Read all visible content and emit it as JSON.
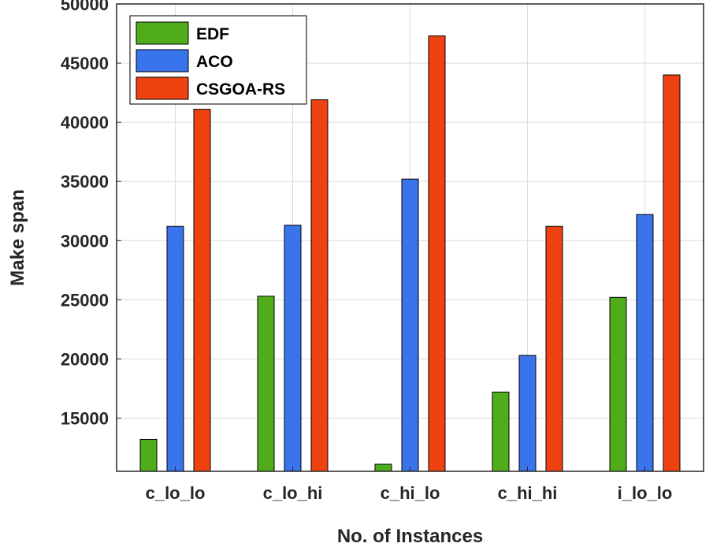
{
  "chart_data": {
    "type": "bar",
    "categories": [
      "c_lo_lo",
      "c_lo_hi",
      "c_hi_lo",
      "c_hi_hi",
      "i_lo_lo"
    ],
    "series": [
      {
        "name": "EDF",
        "color": "#4fad1b",
        "values": [
          13200,
          25300,
          11100,
          17200,
          25200
        ]
      },
      {
        "name": "ACO",
        "color": "#3a74eb",
        "values": [
          31200,
          31300,
          35200,
          20300,
          32200
        ]
      },
      {
        "name": "CSGOA-RS",
        "color": "#ee4211",
        "values": [
          41100,
          41900,
          47300,
          31200,
          44000
        ]
      }
    ],
    "xlabel": "No. of Instances",
    "ylabel": "Make span",
    "ylim": [
      10500,
      50000
    ],
    "yticks": [
      15000,
      20000,
      25000,
      30000,
      35000,
      40000,
      45000,
      50000
    ],
    "grid": true,
    "legend": "top-left"
  }
}
